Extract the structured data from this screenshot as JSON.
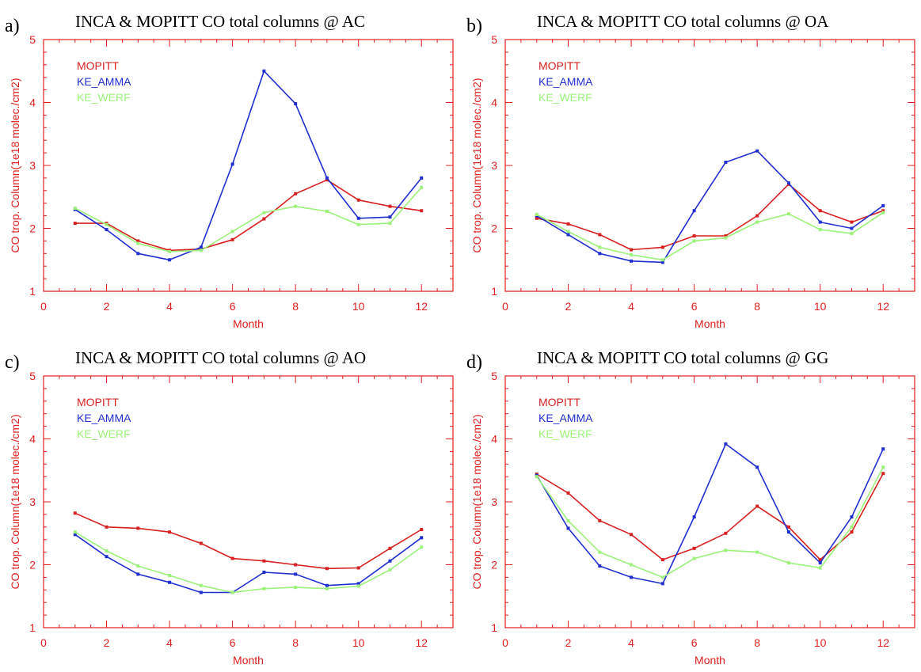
{
  "chart_data": [
    {
      "panel_label": "a)",
      "title": "INCA & MOPITT CO total columns @ AC",
      "type": "line",
      "xlabel": "Month",
      "ylabel": "CO trop. Column(1e18 molec./cm2)",
      "xlim": [
        0,
        13
      ],
      "ylim": [
        1,
        5
      ],
      "xticks": [
        0,
        2,
        4,
        6,
        8,
        10,
        12
      ],
      "yticks": [
        1,
        2,
        3,
        4,
        5
      ],
      "grid": false,
      "legend_position": "top-left",
      "x": [
        1,
        2,
        3,
        4,
        5,
        6,
        7,
        8,
        9,
        10,
        11,
        12
      ],
      "series": [
        {
          "name": "MOPITT",
          "color": "#d62020",
          "values": [
            2.08,
            2.08,
            1.8,
            1.65,
            1.67,
            1.82,
            2.15,
            2.55,
            2.77,
            2.45,
            2.35,
            2.28
          ]
        },
        {
          "name": "KE_AMMA",
          "color": "#1f2fd0",
          "values": [
            2.3,
            1.98,
            1.6,
            1.5,
            1.7,
            3.02,
            4.5,
            3.98,
            2.8,
            2.16,
            2.18,
            2.8
          ]
        },
        {
          "name": "KE_WERF",
          "color": "#9cf27a",
          "values": [
            2.32,
            2.06,
            1.76,
            1.63,
            1.65,
            1.95,
            2.25,
            2.35,
            2.27,
            2.06,
            2.08,
            2.65
          ]
        }
      ]
    },
    {
      "panel_label": "b)",
      "title": "INCA & MOPITT CO total columns @ OA",
      "type": "line",
      "xlabel": "Month",
      "ylabel": "CO trop. Column(1e18 molec./cm2)",
      "xlim": [
        0,
        13
      ],
      "ylim": [
        1,
        5
      ],
      "xticks": [
        0,
        2,
        4,
        6,
        8,
        10,
        12
      ],
      "yticks": [
        1,
        2,
        3,
        4,
        5
      ],
      "grid": false,
      "legend_position": "top-left",
      "x": [
        1,
        2,
        3,
        4,
        5,
        6,
        7,
        8,
        9,
        10,
        11,
        12
      ],
      "series": [
        {
          "name": "MOPITT",
          "color": "#d62020",
          "values": [
            2.16,
            2.07,
            1.9,
            1.66,
            1.7,
            1.88,
            1.88,
            2.2,
            2.7,
            2.28,
            2.1,
            2.28
          ]
        },
        {
          "name": "KE_AMMA",
          "color": "#1f2fd0",
          "values": [
            2.2,
            1.9,
            1.6,
            1.48,
            1.46,
            2.28,
            3.05,
            3.23,
            2.72,
            2.1,
            2.0,
            2.36
          ]
        },
        {
          "name": "KE_WERF",
          "color": "#9cf27a",
          "values": [
            2.22,
            1.95,
            1.7,
            1.58,
            1.5,
            1.8,
            1.85,
            2.1,
            2.23,
            1.98,
            1.92,
            2.25
          ]
        }
      ]
    },
    {
      "panel_label": "c)",
      "title": "INCA & MOPITT CO total columns @ AO",
      "type": "line",
      "xlabel": "Month",
      "ylabel": "CO trop. Column(1e18 molec./cm2)",
      "xlim": [
        0,
        13
      ],
      "ylim": [
        1,
        5
      ],
      "xticks": [
        0,
        2,
        4,
        6,
        8,
        10,
        12
      ],
      "yticks": [
        1,
        2,
        3,
        4,
        5
      ],
      "grid": false,
      "legend_position": "top-left",
      "x": [
        1,
        2,
        3,
        4,
        5,
        6,
        7,
        8,
        9,
        10,
        11,
        12
      ],
      "series": [
        {
          "name": "MOPITT",
          "color": "#d62020",
          "values": [
            2.82,
            2.6,
            2.58,
            2.52,
            2.34,
            2.1,
            2.06,
            2.0,
            1.94,
            1.95,
            2.26,
            2.56
          ]
        },
        {
          "name": "KE_AMMA",
          "color": "#1f2fd0",
          "values": [
            2.48,
            2.13,
            1.85,
            1.72,
            1.56,
            1.56,
            1.88,
            1.85,
            1.67,
            1.7,
            2.06,
            2.43
          ]
        },
        {
          "name": "KE_WERF",
          "color": "#9cf27a",
          "values": [
            2.52,
            2.22,
            1.98,
            1.83,
            1.67,
            1.56,
            1.62,
            1.64,
            1.62,
            1.66,
            1.92,
            2.28
          ]
        }
      ]
    },
    {
      "panel_label": "d)",
      "title": "INCA & MOPITT CO total columns @ GG",
      "type": "line",
      "xlabel": "Month",
      "ylabel": "CO trop. Column(1e18 molec./cm2)",
      "xlim": [
        0,
        13
      ],
      "ylim": [
        1,
        5
      ],
      "xticks": [
        0,
        2,
        4,
        6,
        8,
        10,
        12
      ],
      "yticks": [
        1,
        2,
        3,
        4,
        5
      ],
      "grid": false,
      "legend_position": "top-left",
      "x": [
        1,
        2,
        3,
        4,
        5,
        6,
        7,
        8,
        9,
        10,
        11,
        12
      ],
      "series": [
        {
          "name": "MOPITT",
          "color": "#d62020",
          "values": [
            3.44,
            3.14,
            2.7,
            2.48,
            2.08,
            2.26,
            2.5,
            2.93,
            2.6,
            2.08,
            2.52,
            3.45
          ]
        },
        {
          "name": "KE_AMMA",
          "color": "#1f2fd0",
          "values": [
            3.42,
            2.58,
            1.98,
            1.8,
            1.7,
            2.76,
            3.92,
            3.55,
            2.52,
            2.03,
            2.76,
            3.84
          ]
        },
        {
          "name": "KE_WERF",
          "color": "#9cf27a",
          "values": [
            3.4,
            2.7,
            2.2,
            2.0,
            1.8,
            2.1,
            2.23,
            2.2,
            2.03,
            1.95,
            2.6,
            3.55
          ]
        }
      ]
    }
  ]
}
